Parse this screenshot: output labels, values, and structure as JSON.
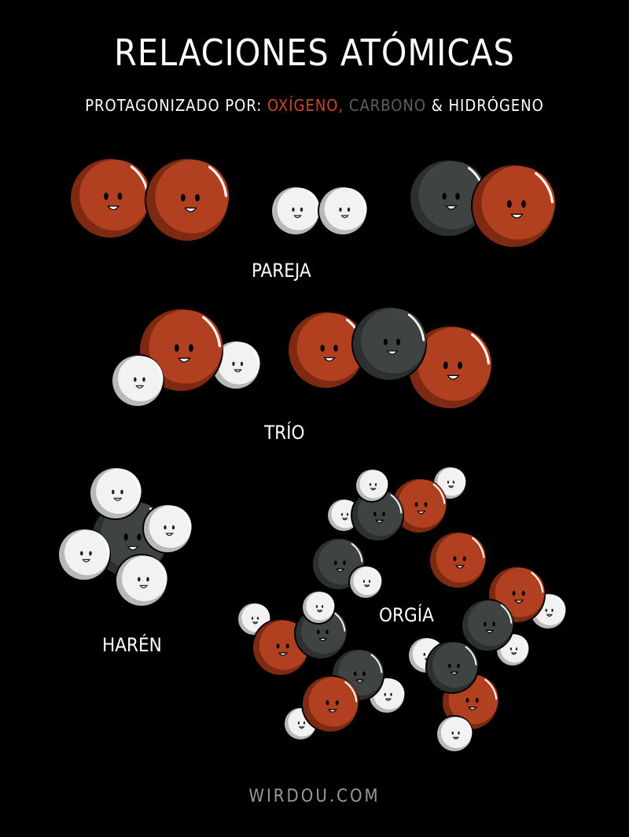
{
  "title": "RELACIONES ATÓMICAS",
  "subtitle": {
    "prefix": "PROTAGONIZADO POR: ",
    "oxygen": "OXÍGENO,",
    "carbon": "CARBONO",
    "amp": " & ",
    "hydrogen": "HIDRÓGENO"
  },
  "labels": {
    "pair": "PAREJA",
    "trio": "TRÍO",
    "harem": "HARÉN",
    "orgy": "ORGÍA"
  },
  "footer": "WIRDOU.COM",
  "colors": {
    "background": "#000000",
    "oxygen": "#b0401f",
    "carbon": "#3f4443",
    "hydrogen": "#f2f2f2"
  }
}
